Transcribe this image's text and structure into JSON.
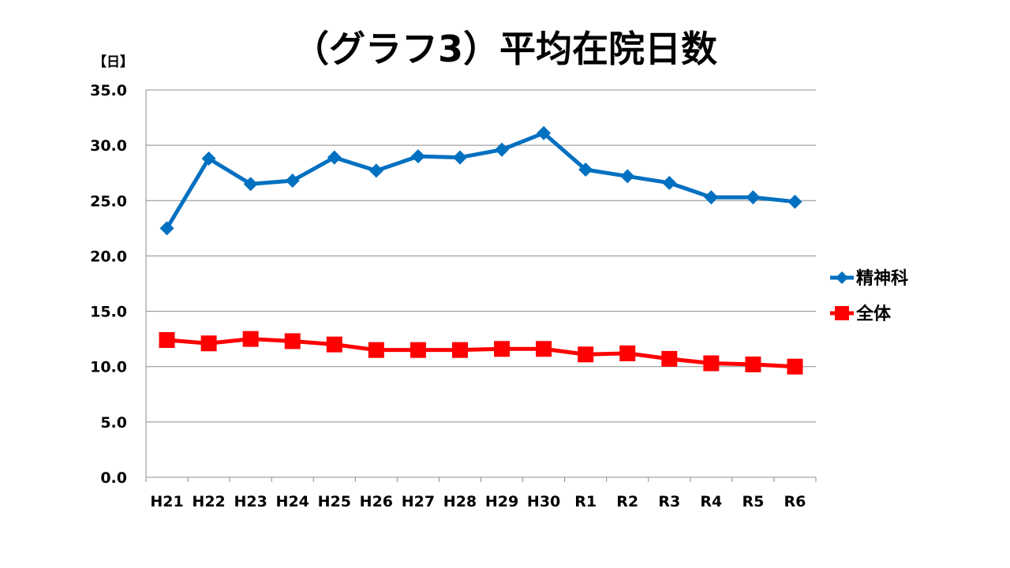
{
  "chart_data": {
    "type": "line",
    "title": "（グラフ3）平均在院日数",
    "unit_label": "【日】",
    "categories": [
      "H21",
      "H22",
      "H23",
      "H24",
      "H25",
      "H26",
      "H27",
      "H28",
      "H29",
      "H30",
      "R1",
      "R2",
      "R3",
      "R4",
      "R5",
      "R6"
    ],
    "y_ticks": [
      "0.0",
      "5.0",
      "10.0",
      "15.0",
      "20.0",
      "25.0",
      "30.0",
      "35.0"
    ],
    "ylim": [
      0,
      35
    ],
    "grid": "horizontal",
    "legend_position": "right",
    "series": [
      {
        "name": "精神科",
        "color": "#0070c0",
        "marker": "diamond",
        "values": [
          22.5,
          28.8,
          26.5,
          26.8,
          28.9,
          27.7,
          29.0,
          28.9,
          29.6,
          31.1,
          27.8,
          27.2,
          26.6,
          25.3,
          25.3,
          24.9
        ]
      },
      {
        "name": "全体",
        "color": "#ff0000",
        "marker": "square",
        "values": [
          12.4,
          12.1,
          12.5,
          12.3,
          12.0,
          11.5,
          11.5,
          11.5,
          11.6,
          11.6,
          11.1,
          11.2,
          10.7,
          10.3,
          10.2,
          10.0
        ]
      }
    ]
  }
}
